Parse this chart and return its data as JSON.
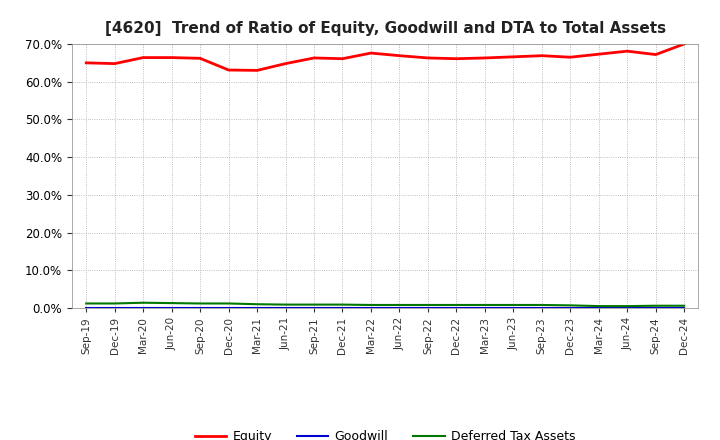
{
  "title": "[4620]  Trend of Ratio of Equity, Goodwill and DTA to Total Assets",
  "x_labels": [
    "Sep-19",
    "Dec-19",
    "Mar-20",
    "Jun-20",
    "Sep-20",
    "Dec-20",
    "Mar-21",
    "Jun-21",
    "Sep-21",
    "Dec-21",
    "Mar-22",
    "Jun-22",
    "Sep-22",
    "Dec-22",
    "Mar-23",
    "Jun-23",
    "Sep-23",
    "Dec-23",
    "Mar-24",
    "Jun-24",
    "Sep-24",
    "Dec-24"
  ],
  "equity": [
    0.65,
    0.648,
    0.664,
    0.664,
    0.662,
    0.631,
    0.63,
    0.648,
    0.663,
    0.661,
    0.676,
    0.669,
    0.663,
    0.661,
    0.663,
    0.666,
    0.669,
    0.665,
    0.673,
    0.681,
    0.672,
    0.7
  ],
  "goodwill": [
    0.0,
    0.0,
    0.0,
    0.0,
    0.0,
    0.0,
    0.0,
    0.0,
    0.0,
    0.0,
    0.0,
    0.0,
    0.0,
    0.0,
    0.0,
    0.0,
    0.0,
    0.0,
    0.0,
    0.0,
    0.0,
    0.0
  ],
  "dta": [
    0.012,
    0.012,
    0.014,
    0.013,
    0.012,
    0.012,
    0.01,
    0.009,
    0.009,
    0.009,
    0.008,
    0.008,
    0.008,
    0.008,
    0.008,
    0.008,
    0.008,
    0.007,
    0.005,
    0.005,
    0.006,
    0.006
  ],
  "equity_color": "#FF0000",
  "goodwill_color": "#0000CC",
  "dta_color": "#007700",
  "ylim": [
    0.0,
    0.7
  ],
  "yticks": [
    0.0,
    0.1,
    0.2,
    0.3,
    0.4,
    0.5,
    0.6,
    0.7
  ],
  "background_color": "#FFFFFF",
  "plot_bg_color": "#FFFFFF",
  "grid_color": "#AAAAAA",
  "title_fontsize": 11,
  "legend_labels": [
    "Equity",
    "Goodwill",
    "Deferred Tax Assets"
  ]
}
